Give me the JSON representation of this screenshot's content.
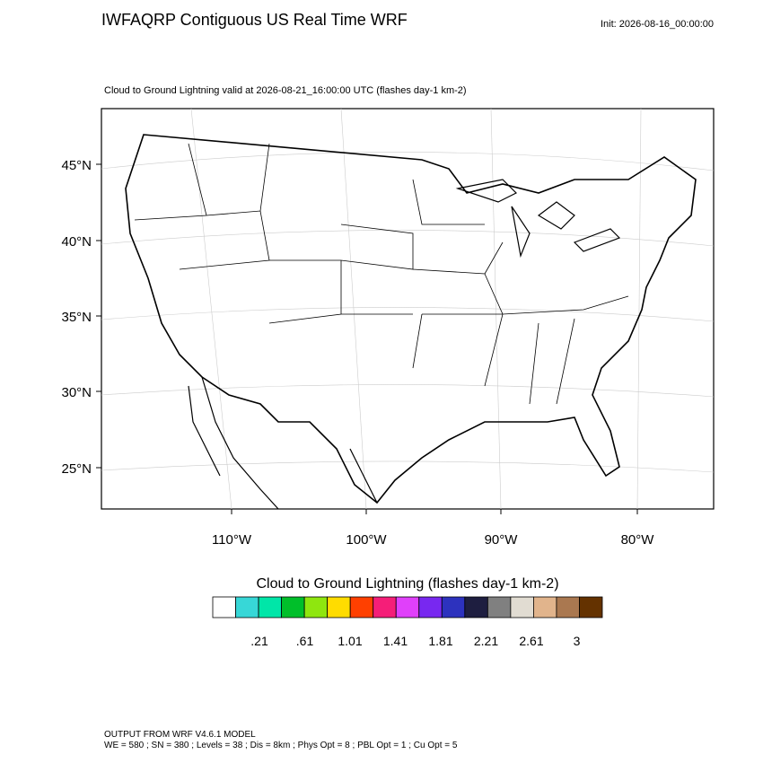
{
  "header": {
    "title": "IWFAQRP Contiguous US Real Time WRF",
    "init": "Init: 2026-08-16_00:00:00"
  },
  "subtitle": "Cloud to Ground Lightning valid at 2026-08-21_16:00:00 UTC   (flashes day-1 km-2)",
  "map": {
    "lat_labels": [
      "45°N",
      "40°N",
      "35°N",
      "30°N",
      "25°N"
    ],
    "lon_labels": [
      "110°W",
      "100°W",
      "90°W",
      "80°W"
    ]
  },
  "colorbar": {
    "title": "Cloud to Ground Lightning  (flashes day-1 km-2)",
    "colors": [
      "#ffffff",
      "#37d7d7",
      "#00e6a8",
      "#00bf2a",
      "#8fe60f",
      "#ffdc00",
      "#ff4000",
      "#f51e78",
      "#e040fa",
      "#7828f0",
      "#2d32be",
      "#1e1e40",
      "#808080",
      "#e1dcd2",
      "#e1b48c",
      "#aa7850",
      "#643200"
    ],
    "labels": [
      ".21",
      ".61",
      "1.01",
      "1.41",
      "1.81",
      "2.21",
      "2.61",
      "3"
    ]
  },
  "footer": {
    "line1": "OUTPUT FROM WRF V4.6.1 MODEL",
    "line2": "WE = 580 ; SN = 380 ; Levels = 38 ; Dis = 8km ; Phys Opt = 8 ; PBL Opt = 1 ; Cu Opt = 5"
  }
}
